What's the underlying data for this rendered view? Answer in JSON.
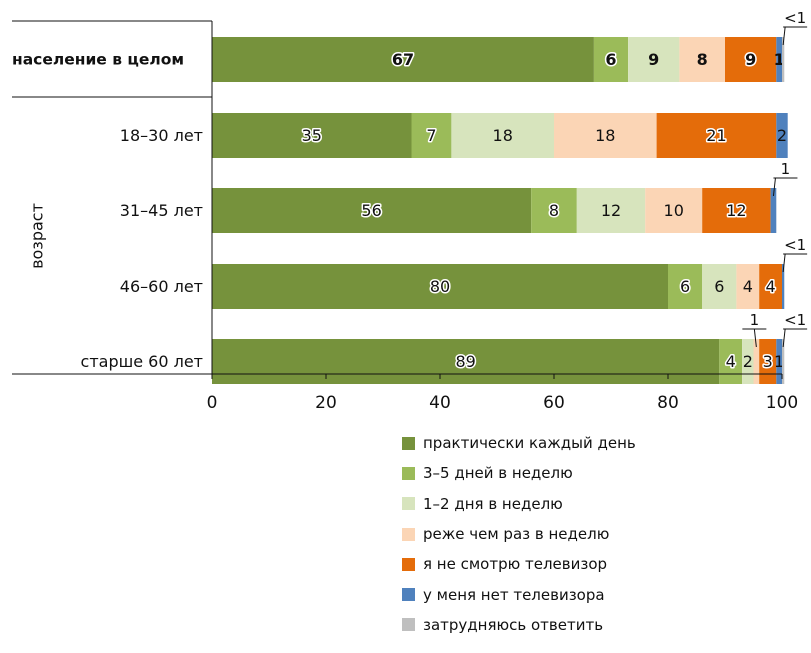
{
  "chart_data": {
    "type": "bar",
    "orientation": "horizontal",
    "stacked": true,
    "ylabel": "возраст",
    "categories": [
      "население в целом",
      "18–30 лет",
      "31–45 лет",
      "46–60 лет",
      "старше 60 лет"
    ],
    "xlim": [
      0,
      100
    ],
    "xticks": [
      0,
      20,
      40,
      60,
      80,
      100
    ],
    "grid": false,
    "legend_position": "bottom",
    "series": [
      {
        "name": "практически каждый день",
        "color": "#76923c",
        "values": [
          67,
          35,
          56,
          80,
          89
        ],
        "labels": [
          "67",
          "35",
          "56",
          "80",
          "89"
        ]
      },
      {
        "name": "3–5 дней в неделю",
        "color": "#9bbb59",
        "values": [
          6,
          7,
          8,
          6,
          4
        ],
        "labels": [
          "6",
          "7",
          "8",
          "6",
          "4"
        ]
      },
      {
        "name": "1–2 дня в неделю",
        "color": "#d7e4bd",
        "values": [
          9,
          18,
          12,
          6,
          2
        ],
        "labels": [
          "9",
          "18",
          "12",
          "6",
          "2"
        ]
      },
      {
        "name": "реже чем раз в неделю",
        "color": "#fbd5b5",
        "values": [
          8,
          18,
          10,
          4,
          1
        ],
        "labels": [
          "8",
          "18",
          "10",
          "4",
          "1"
        ]
      },
      {
        "name": "я не смотрю телевизор",
        "color": "#e46c0a",
        "values": [
          9,
          21,
          12,
          4,
          3
        ],
        "labels": [
          "9",
          "21",
          "12",
          "4",
          "3"
        ]
      },
      {
        "name": "у меня нет телевизора",
        "color": "#4f81bd",
        "values": [
          1,
          2,
          1,
          0.4,
          1
        ],
        "labels": [
          "1",
          "2",
          "1",
          "<1",
          "1"
        ]
      },
      {
        "name": "затрудняюсь ответить",
        "color": "#bfbfbf",
        "values": [
          0.4,
          0,
          0,
          0,
          0.4
        ],
        "labels": [
          "<1",
          "",
          "",
          "",
          "<1"
        ]
      }
    ],
    "callouts": [
      {
        "row": 0,
        "series": 6,
        "text": "<1"
      },
      {
        "row": 2,
        "series": 5,
        "text": "1"
      },
      {
        "row": 3,
        "series": 5,
        "text": "<1"
      },
      {
        "row": 4,
        "series": 3,
        "text": "1"
      },
      {
        "row": 4,
        "series": 6,
        "text": "<1"
      }
    ]
  }
}
